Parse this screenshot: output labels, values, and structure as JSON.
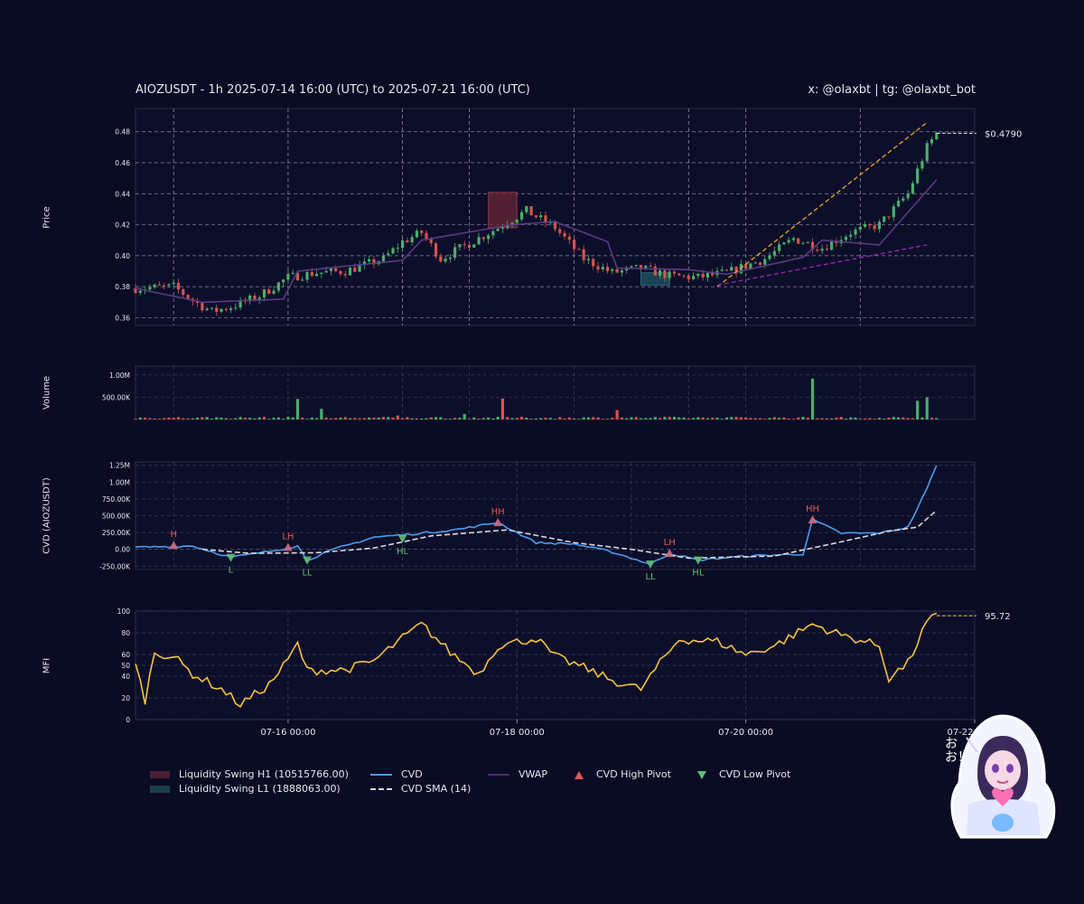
{
  "header": {
    "title": "AIOZUSDT - 1h 2025-07-14 16:00 (UTC) to 2025-07-21 16:00 (UTC)",
    "credit": "x: @olaxbt | tg: @olaxbt_bot"
  },
  "panels": {
    "price_label": "Price",
    "volume_label": "Volume",
    "cvd_label": "CVD (AIOZUSDT)",
    "mfi_label": "MFI"
  },
  "legend": {
    "swing_high": "Liquidity Swing H1 (10515766.00)",
    "swing_low": "Liquidity Swing L1 (1888063.00)",
    "cvd": "CVD",
    "cvd_sma": "CVD SMA (14)",
    "vwap": "VWAP",
    "cvd_high_pivot": "CVD High Pivot",
    "cvd_low_pivot": "CVD Low Pivot"
  },
  "colors": {
    "background": "#0a0c23",
    "up": "#4caf6a",
    "down": "#d9534f",
    "cvd": "#4a9cf0",
    "cvd_sma": "#d8d8e0",
    "vwap": "#4a2f6a",
    "mfi": "#f5c242",
    "trend": "#f5a623",
    "trend_low": "#9c27b0",
    "swing_high_zone": "#6b2636",
    "swing_low_zone": "#1f5561"
  },
  "mascot": {
    "caption": "おお！"
  },
  "chart_data": [
    {
      "panel": "price",
      "type": "candlestick",
      "x_axis": "time",
      "x_start": "2025-07-14 16:00",
      "x_end": "2025-07-22 00:00",
      "x_ticks": [
        "07-16 00:00",
        "07-18 00:00",
        "07-20 00:00",
        "07-22 00:00"
      ],
      "ylim": [
        0.355,
        0.495
      ],
      "yticks": [
        0.36,
        0.38,
        0.4,
        0.42,
        0.44,
        0.46,
        0.48
      ],
      "grid": true,
      "last_price_label": "$0.4790",
      "close_anchors": [
        {
          "t": "2025-07-14 16:00",
          "v": 0.379
        },
        {
          "t": "2025-07-15 00:00",
          "v": 0.38
        },
        {
          "t": "2025-07-15 04:00",
          "v": 0.371
        },
        {
          "t": "2025-07-15 08:00",
          "v": 0.364
        },
        {
          "t": "2025-07-15 12:00",
          "v": 0.367
        },
        {
          "t": "2025-07-15 18:00",
          "v": 0.374
        },
        {
          "t": "2025-07-16 00:00",
          "v": 0.386
        },
        {
          "t": "2025-07-16 06:00",
          "v": 0.389
        },
        {
          "t": "2025-07-16 12:00",
          "v": 0.39
        },
        {
          "t": "2025-07-16 20:00",
          "v": 0.398
        },
        {
          "t": "2025-07-17 00:00",
          "v": 0.409
        },
        {
          "t": "2025-07-17 04:00",
          "v": 0.415
        },
        {
          "t": "2025-07-17 08:00",
          "v": 0.398
        },
        {
          "t": "2025-07-17 14:00",
          "v": 0.408
        },
        {
          "t": "2025-07-17 20:00",
          "v": 0.418
        },
        {
          "t": "2025-07-18 02:00",
          "v": 0.429
        },
        {
          "t": "2025-07-18 08:00",
          "v": 0.418
        },
        {
          "t": "2025-07-18 14:00",
          "v": 0.398
        },
        {
          "t": "2025-07-18 20:00",
          "v": 0.389
        },
        {
          "t": "2025-07-19 02:00",
          "v": 0.392
        },
        {
          "t": "2025-07-19 08:00",
          "v": 0.387
        },
        {
          "t": "2025-07-19 14:00",
          "v": 0.386
        },
        {
          "t": "2025-07-19 20:00",
          "v": 0.389
        },
        {
          "t": "2025-07-20 04:00",
          "v": 0.398
        },
        {
          "t": "2025-07-20 10:00",
          "v": 0.411
        },
        {
          "t": "2025-07-20 16:00",
          "v": 0.405
        },
        {
          "t": "2025-07-20 22:00",
          "v": 0.415
        },
        {
          "t": "2025-07-21 04:00",
          "v": 0.42
        },
        {
          "t": "2025-07-21 10:00",
          "v": 0.44
        },
        {
          "t": "2025-07-21 14:00",
          "v": 0.47
        },
        {
          "t": "2025-07-21 16:00",
          "v": 0.479
        }
      ],
      "vwap_anchors": [
        {
          "t": "2025-07-14 16:00",
          "v": 0.379
        },
        {
          "t": "2025-07-15 06:00",
          "v": 0.37
        },
        {
          "t": "2025-07-15 23:00",
          "v": 0.372
        },
        {
          "t": "2025-07-16 02:00",
          "v": 0.39
        },
        {
          "t": "2025-07-17 00:00",
          "v": 0.397
        },
        {
          "t": "2025-07-17 04:00",
          "v": 0.41
        },
        {
          "t": "2025-07-17 23:00",
          "v": 0.42
        },
        {
          "t": "2025-07-18 08:00",
          "v": 0.422
        },
        {
          "t": "2025-07-18 19:00",
          "v": 0.409
        },
        {
          "t": "2025-07-18 21:00",
          "v": 0.392
        },
        {
          "t": "2025-07-19 12:00",
          "v": 0.391
        },
        {
          "t": "2025-07-19 20:00",
          "v": 0.388
        },
        {
          "t": "2025-07-20 12:00",
          "v": 0.399
        },
        {
          "t": "2025-07-20 16:00",
          "v": 0.41
        },
        {
          "t": "2025-07-21 04:00",
          "v": 0.407
        },
        {
          "t": "2025-07-21 16:00",
          "v": 0.449
        }
      ],
      "zones": [
        {
          "name": "Liquidity Swing H1",
          "from": "2025-07-17 18:00",
          "to": "2025-07-18 00:00",
          "low": 0.418,
          "high": 0.441
        },
        {
          "name": "Liquidity Swing L1",
          "from": "2025-07-19 02:00",
          "to": "2025-07-19 08:00",
          "low": 0.381,
          "high": 0.389
        }
      ],
      "trendlines": [
        {
          "from": {
            "t": "2025-07-19 18:00",
            "v": 0.38
          },
          "to": {
            "t": "2025-07-21 14:00",
            "v": 0.486
          },
          "style": "dashed",
          "color": "trend"
        },
        {
          "from": {
            "t": "2025-07-19 18:00",
            "v": 0.381
          },
          "to": {
            "t": "2025-07-21 14:00",
            "v": 0.407
          },
          "style": "dashed",
          "color": "trend_low"
        }
      ]
    },
    {
      "panel": "volume",
      "type": "bar",
      "ylim": [
        0,
        1200000
      ],
      "ytick_labels": [
        "500.00K",
        "1.00M"
      ],
      "yticks": [
        500000,
        1000000
      ],
      "spikes": [
        {
          "t": "2025-07-16 02:00",
          "v": 460000
        },
        {
          "t": "2025-07-16 07:00",
          "v": 240000
        },
        {
          "t": "2025-07-16 23:00",
          "v": 90000
        },
        {
          "t": "2025-07-17 21:00",
          "v": 470000
        },
        {
          "t": "2025-07-17 13:00",
          "v": 120000
        },
        {
          "t": "2025-07-18 21:00",
          "v": 210000
        },
        {
          "t": "2025-07-20 14:00",
          "v": 920000
        },
        {
          "t": "2025-07-21 12:00",
          "v": 420000
        },
        {
          "t": "2025-07-21 14:00",
          "v": 500000
        }
      ]
    },
    {
      "panel": "cvd",
      "type": "line",
      "ylim": [
        -300000,
        1300000
      ],
      "yticks": [
        -250000,
        0,
        250000,
        500000,
        750000,
        1000000,
        1250000
      ],
      "ytick_labels": [
        "-250.00K",
        "0.00",
        "250.00K",
        "500.00K",
        "750.00K",
        "1.00M",
        "1.25M"
      ],
      "series": [
        {
          "name": "CVD",
          "points": [
            {
              "t": "2025-07-14 16:00",
              "v": 30000
            },
            {
              "t": "2025-07-15 04:00",
              "v": 50000
            },
            {
              "t": "2025-07-15 12:00",
              "v": -120000
            },
            {
              "t": "2025-07-15 20:00",
              "v": -30000
            },
            {
              "t": "2025-07-16 02:00",
              "v": 50000
            },
            {
              "t": "2025-07-16 04:00",
              "v": -160000
            },
            {
              "t": "2025-07-16 10:00",
              "v": 10000
            },
            {
              "t": "2025-07-16 18:00",
              "v": 180000
            },
            {
              "t": "2025-07-17 04:00",
              "v": 240000
            },
            {
              "t": "2025-07-17 12:00",
              "v": 300000
            },
            {
              "t": "2025-07-17 20:00",
              "v": 400000
            },
            {
              "t": "2025-07-18 04:00",
              "v": 100000
            },
            {
              "t": "2025-07-18 12:00",
              "v": 80000
            },
            {
              "t": "2025-07-18 20:00",
              "v": -40000
            },
            {
              "t": "2025-07-19 04:00",
              "v": -220000
            },
            {
              "t": "2025-07-19 08:00",
              "v": -60000
            },
            {
              "t": "2025-07-19 14:00",
              "v": -160000
            },
            {
              "t": "2025-07-20 00:00",
              "v": -100000
            },
            {
              "t": "2025-07-20 12:00",
              "v": -70000
            },
            {
              "t": "2025-07-20 14:00",
              "v": 440000
            },
            {
              "t": "2025-07-20 20:00",
              "v": 240000
            },
            {
              "t": "2025-07-21 04:00",
              "v": 240000
            },
            {
              "t": "2025-07-21 10:00",
              "v": 330000
            },
            {
              "t": "2025-07-21 14:00",
              "v": 900000
            },
            {
              "t": "2025-07-21 16:00",
              "v": 1260000
            }
          ]
        },
        {
          "name": "CVD SMA (14)",
          "points": [
            {
              "t": "2025-07-15 06:00",
              "v": 0
            },
            {
              "t": "2025-07-15 16:00",
              "v": -60000
            },
            {
              "t": "2025-07-16 06:00",
              "v": -50000
            },
            {
              "t": "2025-07-16 18:00",
              "v": 20000
            },
            {
              "t": "2025-07-17 06:00",
              "v": 200000
            },
            {
              "t": "2025-07-17 22:00",
              "v": 290000
            },
            {
              "t": "2025-07-18 12:00",
              "v": 100000
            },
            {
              "t": "2025-07-19 00:00",
              "v": 0
            },
            {
              "t": "2025-07-19 12:00",
              "v": -130000
            },
            {
              "t": "2025-07-20 06:00",
              "v": -100000
            },
            {
              "t": "2025-07-20 18:00",
              "v": 80000
            },
            {
              "t": "2025-07-21 06:00",
              "v": 270000
            },
            {
              "t": "2025-07-21 12:00",
              "v": 330000
            },
            {
              "t": "2025-07-21 16:00",
              "v": 580000
            }
          ]
        }
      ],
      "pivots": [
        {
          "t": "2025-07-15 00:00",
          "v": 60000,
          "label": "H",
          "kind": "high"
        },
        {
          "t": "2025-07-15 12:00",
          "v": -120000,
          "label": "L",
          "kind": "low"
        },
        {
          "t": "2025-07-16 00:00",
          "v": 30000,
          "label": "LH",
          "kind": "high"
        },
        {
          "t": "2025-07-16 04:00",
          "v": -160000,
          "label": "LL",
          "kind": "low"
        },
        {
          "t": "2025-07-17 00:00",
          "v": 160000,
          "label": "HL",
          "kind": "low"
        },
        {
          "t": "2025-07-17 20:00",
          "v": 400000,
          "label": "HH",
          "kind": "high"
        },
        {
          "t": "2025-07-19 04:00",
          "v": -220000,
          "label": "LL",
          "kind": "low"
        },
        {
          "t": "2025-07-19 08:00",
          "v": -60000,
          "label": "LH",
          "kind": "high"
        },
        {
          "t": "2025-07-19 14:00",
          "v": -160000,
          "label": "HL",
          "kind": "low"
        },
        {
          "t": "2025-07-20 14:00",
          "v": 440000,
          "label": "HH",
          "kind": "high"
        }
      ]
    },
    {
      "panel": "mfi",
      "type": "line",
      "ylim": [
        0,
        100
      ],
      "yticks": [
        0,
        20,
        40,
        50,
        60,
        80,
        100
      ],
      "last_value_label": "95.72",
      "points": [
        {
          "t": "2025-07-14 16:00",
          "v": 50
        },
        {
          "t": "2025-07-14 18:00",
          "v": 18
        },
        {
          "t": "2025-07-14 20:00",
          "v": 62
        },
        {
          "t": "2025-07-15 00:00",
          "v": 58
        },
        {
          "t": "2025-07-15 04:00",
          "v": 42
        },
        {
          "t": "2025-07-15 10:00",
          "v": 28
        },
        {
          "t": "2025-07-15 14:00",
          "v": 14
        },
        {
          "t": "2025-07-15 20:00",
          "v": 32
        },
        {
          "t": "2025-07-16 00:00",
          "v": 55
        },
        {
          "t": "2025-07-16 02:00",
          "v": 70
        },
        {
          "t": "2025-07-16 04:00",
          "v": 45
        },
        {
          "t": "2025-07-16 12:00",
          "v": 46
        },
        {
          "t": "2025-07-16 18:00",
          "v": 54
        },
        {
          "t": "2025-07-17 00:00",
          "v": 75
        },
        {
          "t": "2025-07-17 04:00",
          "v": 88
        },
        {
          "t": "2025-07-17 10:00",
          "v": 62
        },
        {
          "t": "2025-07-17 16:00",
          "v": 42
        },
        {
          "t": "2025-07-17 20:00",
          "v": 68
        },
        {
          "t": "2025-07-18 04:00",
          "v": 75
        },
        {
          "t": "2025-07-18 08:00",
          "v": 58
        },
        {
          "t": "2025-07-18 14:00",
          "v": 48
        },
        {
          "t": "2025-07-18 20:00",
          "v": 36
        },
        {
          "t": "2025-07-19 02:00",
          "v": 28
        },
        {
          "t": "2025-07-19 06:00",
          "v": 52
        },
        {
          "t": "2025-07-19 10:00",
          "v": 74
        },
        {
          "t": "2025-07-19 18:00",
          "v": 72
        },
        {
          "t": "2025-07-20 00:00",
          "v": 60
        },
        {
          "t": "2025-07-20 06:00",
          "v": 68
        },
        {
          "t": "2025-07-20 14:00",
          "v": 88
        },
        {
          "t": "2025-07-20 20:00",
          "v": 78
        },
        {
          "t": "2025-07-21 04:00",
          "v": 68
        },
        {
          "t": "2025-07-21 06:00",
          "v": 38
        },
        {
          "t": "2025-07-21 10:00",
          "v": 52
        },
        {
          "t": "2025-07-21 14:00",
          "v": 90
        },
        {
          "t": "2025-07-21 16:00",
          "v": 95.72
        }
      ]
    }
  ]
}
